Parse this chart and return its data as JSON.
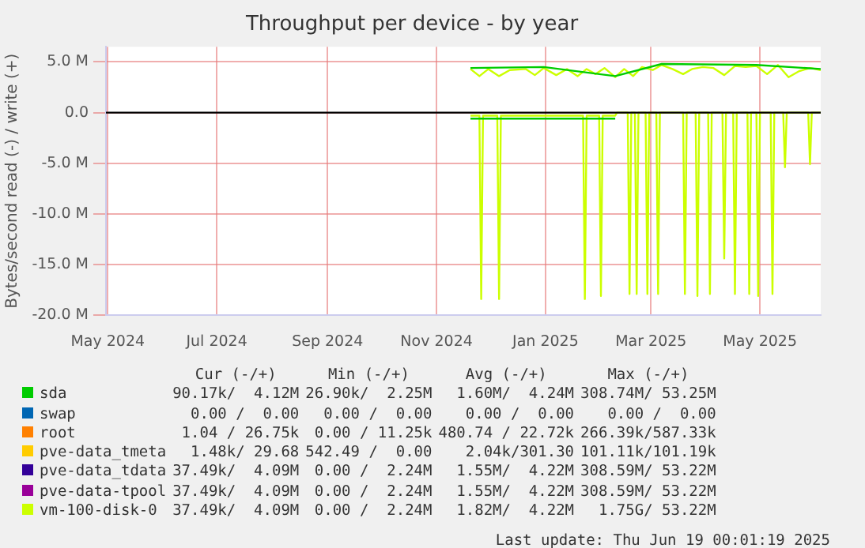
{
  "chart_data": {
    "type": "line",
    "title": "Throughput per device - by year",
    "ylabel": "Bytes/second read (-) / write (+)",
    "xlim": [
      "2024-05-15",
      "2025-06-19"
    ],
    "xticks": [
      {
        "value": "2024-05-16",
        "label": "May 2024"
      },
      {
        "value": "2024-07-16",
        "label": "Jul 2024"
      },
      {
        "value": "2024-09-16",
        "label": "Sep 2024"
      },
      {
        "value": "2024-11-16",
        "label": "Nov 2024"
      },
      {
        "value": "2025-01-16",
        "label": "Jan 2025"
      },
      {
        "value": "2025-03-16",
        "label": "Mar 2025"
      },
      {
        "value": "2025-05-16",
        "label": "May 2025"
      }
    ],
    "ylim": [
      -20,
      6.5
    ],
    "yticks": [
      {
        "value": 5,
        "label": "5.0 M"
      },
      {
        "value": 0,
        "label": "0.0"
      },
      {
        "value": -5,
        "label": "-5.0 M"
      },
      {
        "value": -10,
        "label": "-10.0 M"
      },
      {
        "value": -15,
        "label": "-15.0 M"
      },
      {
        "value": -20,
        "label": "-20.0 M"
      }
    ],
    "grid": true,
    "legend": "bottom",
    "marker": "none",
    "line_style": "solid",
    "ref_lines": [
      {
        "axis": "y",
        "value": 0,
        "color": "#000000"
      }
    ],
    "series": [
      {
        "name": "sda",
        "color": "#00cc00",
        "x": [
          "2024-12-05",
          "2025-01-15",
          "2025-02-24",
          "2025-03-22",
          "2025-05-14",
          "2025-06-19"
        ],
        "values": [
          4.4,
          4.5,
          3.6,
          4.8,
          4.7,
          4.3
        ]
      },
      {
        "color": "#00cc00",
        "x": [
          "2024-12-05",
          "2025-02-24"
        ],
        "values": [
          -0.6,
          -0.6
        ]
      },
      {
        "name": "swap",
        "color": "#0066b3"
      },
      {
        "name": "root",
        "color": "#ff8000"
      },
      {
        "name": "pve-data_tmeta",
        "color": "#ffcc00"
      },
      {
        "name": "pve-data_tdata",
        "color": "#330099"
      },
      {
        "name": "pve-data-tpool",
        "color": "#990099"
      },
      {
        "name": "vm-100-disk-0",
        "color": "#ccff00",
        "x": [
          "2024-12-05",
          "2024-12-10",
          "2024-12-15",
          "2024-12-21",
          "2024-12-27",
          "2025-01-05",
          "2025-01-10",
          "2025-01-15",
          "2025-01-22",
          "2025-01-28",
          "2025-02-03",
          "2025-02-08",
          "2025-02-13",
          "2025-02-18",
          "2025-02-24",
          "2025-03-01",
          "2025-03-06",
          "2025-03-11",
          "2025-03-17",
          "2025-03-22",
          "2025-03-28",
          "2025-04-03",
          "2025-04-08",
          "2025-04-14",
          "2025-04-20",
          "2025-04-26",
          "2025-05-02",
          "2025-05-08",
          "2025-05-14",
          "2025-05-20",
          "2025-05-26",
          "2025-06-01",
          "2025-06-07",
          "2025-06-13",
          "2025-06-19"
        ],
        "values": [
          4.3,
          3.6,
          4.3,
          3.6,
          4.2,
          4.3,
          3.7,
          4.4,
          3.7,
          4.3,
          3.6,
          4.3,
          3.8,
          4.4,
          3.5,
          4.3,
          3.6,
          4.5,
          4.2,
          4.7,
          4.3,
          3.8,
          4.3,
          4.5,
          4.4,
          3.7,
          4.6,
          4.5,
          4.6,
          3.8,
          4.7,
          3.5,
          4.1,
          4.4,
          4.2
        ]
      },
      {
        "color": "#ccff00",
        "x": [
          "2024-12-05",
          "2024-12-10",
          "2024-12-11",
          "2024-12-12",
          "2024-12-20",
          "2024-12-21",
          "2024-12-22",
          "2025-02-06",
          "2025-02-07",
          "2025-02-08",
          "2025-02-15",
          "2025-02-16",
          "2025-02-17",
          "2025-02-24",
          "2025-02-25",
          "2025-03-03",
          "2025-03-04",
          "2025-03-05",
          "2025-03-07",
          "2025-03-08",
          "2025-03-09",
          "2025-03-13",
          "2025-03-14",
          "2025-03-15",
          "2025-03-19",
          "2025-03-20",
          "2025-03-21",
          "2025-04-03",
          "2025-04-04",
          "2025-04-05",
          "2025-04-10",
          "2025-04-11",
          "2025-04-12",
          "2025-04-17",
          "2025-04-18",
          "2025-04-19",
          "2025-04-25",
          "2025-04-26",
          "2025-04-27",
          "2025-05-01",
          "2025-05-02",
          "2025-05-03",
          "2025-05-09",
          "2025-05-10",
          "2025-05-11",
          "2025-05-14",
          "2025-05-15",
          "2025-05-16",
          "2025-05-22",
          "2025-05-23",
          "2025-05-24",
          "2025-05-29",
          "2025-05-30",
          "2025-05-31",
          "2025-06-12",
          "2025-06-13",
          "2025-06-14",
          "2025-06-19"
        ],
        "values": [
          -0.3,
          -0.3,
          -18.4,
          -0.3,
          -0.3,
          -18.4,
          -0.3,
          -0.3,
          -18.4,
          -0.3,
          -0.3,
          -18.1,
          -0.3,
          -0.3,
          0,
          0,
          -17.9,
          0,
          0,
          -17.9,
          0,
          0,
          -17.9,
          0,
          0,
          -17.9,
          0,
          0,
          -17.9,
          0,
          0,
          -18.1,
          0,
          0,
          -17.9,
          0,
          0,
          -14.4,
          0,
          0,
          -17.9,
          0,
          0,
          -17.9,
          0,
          0,
          -18.1,
          0,
          0,
          -17.9,
          0,
          0,
          -5.4,
          0,
          0,
          -5.1,
          0,
          0
        ]
      }
    ],
    "annotations": [
      "Cur (-/+)",
      "Min (-/+)",
      "Avg (-/+)",
      "Max (-/+)",
      "90.17k/  4.12M",
      "26.90k/  2.25M",
      "1.60M/  4.24M",
      "308.74M/ 53.25M",
      "0.00 /  0.00",
      "0.00 /  0.00",
      "0.00 /  0.00",
      "0.00 /  0.00",
      "1.04 / 26.75k",
      "0.00 / 11.25k",
      "480.74 / 22.72k",
      "266.39k/587.33k",
      "1.48k/ 29.68",
      "542.49 /  0.00",
      "2.04k/301.30",
      "101.11k/101.19k",
      "37.49k/  4.09M",
      "0.00 /  2.24M",
      "1.55M/  4.22M",
      "308.59M/ 53.22M",
      "37.49k/  4.09M",
      "0.00 /  2.24M",
      "1.55M/  4.22M",
      "308.59M/ 53.22M",
      "37.49k/  4.09M",
      "0.00 /  2.24M",
      "1.82M/  4.22M",
      "1.75G/ 53.22M",
      "Last update: Thu Jun 19 00:01:19 2025"
    ]
  }
}
